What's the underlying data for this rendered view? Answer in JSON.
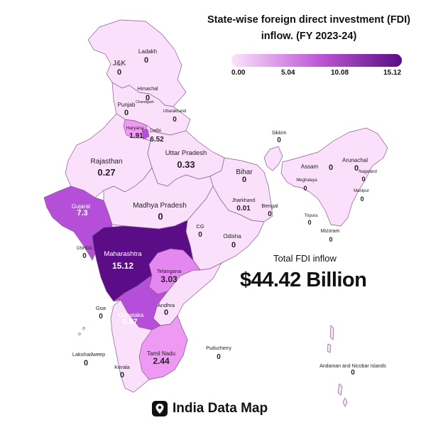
{
  "title": {
    "line1": "State-wise foreign direct investment (FDI)",
    "line2": "inflow. (FY 2023-24)"
  },
  "legend": {
    "ticks": [
      "0.00",
      "5.04",
      "10.08",
      "15.12"
    ],
    "min": 0,
    "max": 15.12,
    "color_low": "#fbe3fb",
    "color_high": "#5a0d86"
  },
  "total": {
    "label": "Total FDI inflow",
    "value": "$44.42 Billion"
  },
  "brand": {
    "name": "India Data Map"
  },
  "colors": {
    "base_fill": "#fbe0fb",
    "border": "#8a5a8f"
  },
  "states": [
    {
      "id": "ladakh",
      "name": "Ladakh",
      "value": "0",
      "v": 0
    },
    {
      "id": "jk",
      "name": "J&K",
      "value": "0",
      "v": 0
    },
    {
      "id": "himachal",
      "name": "Himachal",
      "value": "0",
      "v": 0
    },
    {
      "id": "punjab",
      "name": "Punjab",
      "value": "0",
      "v": 0
    },
    {
      "id": "chandigarh",
      "name": "Chandigarh",
      "value": "",
      "v": 0
    },
    {
      "id": "uttarakhand",
      "name": "Uttarakhand",
      "value": "0",
      "v": 0
    },
    {
      "id": "haryana",
      "name": "Haryana",
      "value": "1.91",
      "v": 1.91
    },
    {
      "id": "delhi",
      "name": "Delhi",
      "value": "6.52",
      "v": 6.52
    },
    {
      "id": "rajasthan",
      "name": "Rajasthan",
      "value": "0.27",
      "v": 0.27
    },
    {
      "id": "uttar-pradesh",
      "name": "Uttar Pradesh",
      "value": "0.33",
      "v": 0.33
    },
    {
      "id": "bihar",
      "name": "Bihar",
      "value": "0",
      "v": 0
    },
    {
      "id": "sikkim",
      "name": "Sikkim",
      "value": "0",
      "v": 0
    },
    {
      "id": "arunachal",
      "name": "Arunachal",
      "value": "0",
      "v": 0
    },
    {
      "id": "assam",
      "name": "Assam",
      "value": "0",
      "v": 0
    },
    {
      "id": "nagaland",
      "name": "Nagaland",
      "value": "0",
      "v": 0
    },
    {
      "id": "meghalaya",
      "name": "Meghalaya",
      "value": "0",
      "v": 0
    },
    {
      "id": "manipur",
      "name": "Manipur",
      "value": "0",
      "v": 0
    },
    {
      "id": "tripura",
      "name": "Tripura",
      "value": "0",
      "v": 0
    },
    {
      "id": "mizoram",
      "name": "Mizoram",
      "value": "0",
      "v": 0
    },
    {
      "id": "jharkhand",
      "name": "Jharkhand",
      "value": "0.01",
      "v": 0.01
    },
    {
      "id": "bengal",
      "name": "Bengal",
      "value": "0",
      "v": 0
    },
    {
      "id": "gujarat",
      "name": "Gujarat",
      "value": "7.3",
      "v": 7.3
    },
    {
      "id": "madhya-pradesh",
      "name": "Madhya Pradesh",
      "value": "0",
      "v": 0
    },
    {
      "id": "cg",
      "name": "CG",
      "value": "0",
      "v": 0
    },
    {
      "id": "odisha",
      "name": "Odisha",
      "value": "0",
      "v": 0
    },
    {
      "id": "dnhdd",
      "name": "DNHDD",
      "value": "0",
      "v": 0
    },
    {
      "id": "maharashtra",
      "name": "Maharashtra",
      "value": "15.12",
      "v": 15.12
    },
    {
      "id": "telangana",
      "name": "Telangana",
      "value": "3.03",
      "v": 3.03
    },
    {
      "id": "goa",
      "name": "Goa",
      "value": "0",
      "v": 0
    },
    {
      "id": "andhra",
      "name": "Andhra",
      "value": "0",
      "v": 0
    },
    {
      "id": "karnataka",
      "name": "Karnataka",
      "value": "6.57",
      "v": 6.57
    },
    {
      "id": "lakshadweep",
      "name": "Lakshadweep",
      "value": "0",
      "v": 0
    },
    {
      "id": "kerala",
      "name": "Kerala",
      "value": "0",
      "v": 0
    },
    {
      "id": "tamil-nadu",
      "name": "Tamil Nadu",
      "value": "2.44",
      "v": 2.44
    },
    {
      "id": "puducherry",
      "name": "Puducherry",
      "value": "0",
      "v": 0
    },
    {
      "id": "andaman",
      "name": "Andaman and Nicobar Islands",
      "value": "0",
      "v": 0
    }
  ]
}
